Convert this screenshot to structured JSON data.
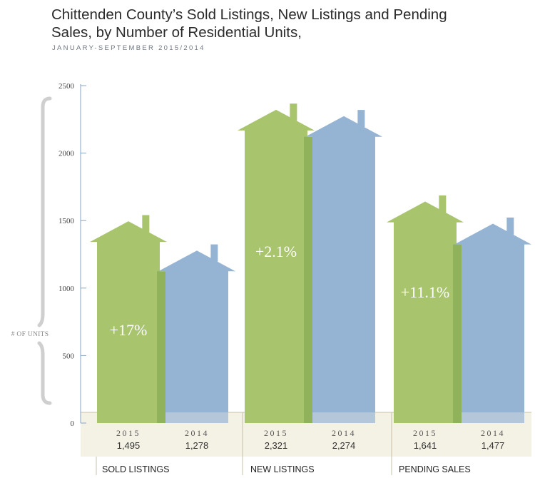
{
  "title": "Chittenden County’s Sold Listings, New Listings and Pending Sales, by Number of Residential Units,",
  "subtitle": "JANUARY-SEPTEMBER 2015/2014",
  "colors": {
    "y2015": "#a8c46d",
    "y2015_dark": "#8fb25a",
    "y2014": "#95b4d3",
    "axis": "#8aa3c0",
    "bracket": "#cfcfcf",
    "band": "#f4f1e5",
    "divider": "#c8c0a8"
  },
  "chart_data": {
    "type": "bar",
    "style": "house-shaped bars",
    "ylabel": "# OF UNITS",
    "ylim": [
      0,
      2500
    ],
    "yticks": [
      0,
      500,
      1000,
      1500,
      2000,
      2500
    ],
    "categories": [
      "SOLD LISTINGS",
      "NEW LISTINGS",
      "PENDING SALES"
    ],
    "series": [
      {
        "name": "2015",
        "values": [
          1495,
          2321,
          1641
        ],
        "value_labels": [
          "1,495",
          "2,321",
          "1,641"
        ]
      },
      {
        "name": "2014",
        "values": [
          1278,
          2274,
          1477
        ],
        "value_labels": [
          "1,278",
          "2,274",
          "1,477"
        ]
      }
    ],
    "changes": [
      "+17%",
      "+2.1%",
      "+11.1%"
    ],
    "grid": false,
    "legend": "none"
  }
}
